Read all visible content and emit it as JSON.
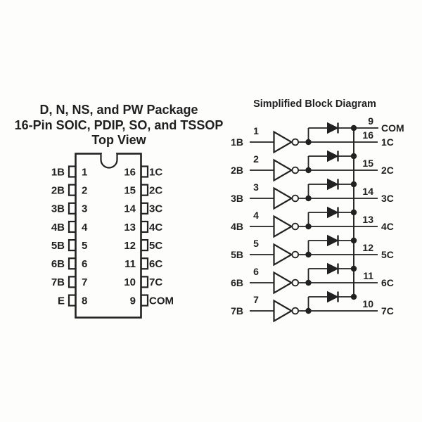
{
  "colors": {
    "background": "#fdfdfb",
    "ink": "#212121"
  },
  "package_diagram": {
    "title_lines": [
      "D, N, NS, and PW Package",
      "16-Pin SOIC, PDIP, SO, and TSSOP",
      "Top View"
    ],
    "left_pins": [
      {
        "label": "1B",
        "number": "1"
      },
      {
        "label": "2B",
        "number": "2"
      },
      {
        "label": "3B",
        "number": "3"
      },
      {
        "label": "4B",
        "number": "4"
      },
      {
        "label": "5B",
        "number": "5"
      },
      {
        "label": "6B",
        "number": "6"
      },
      {
        "label": "7B",
        "number": "7"
      },
      {
        "label": "E",
        "number": "8"
      }
    ],
    "right_pins": [
      {
        "label": "1C",
        "number": "16"
      },
      {
        "label": "2C",
        "number": "15"
      },
      {
        "label": "3C",
        "number": "14"
      },
      {
        "label": "4C",
        "number": "13"
      },
      {
        "label": "5C",
        "number": "12"
      },
      {
        "label": "6C",
        "number": "11"
      },
      {
        "label": "7C",
        "number": "10"
      },
      {
        "label": "COM",
        "number": "9"
      }
    ]
  },
  "block_diagram": {
    "title": "Simplified Block Diagram",
    "com": {
      "pin": "9",
      "label": "COM"
    },
    "channels": [
      {
        "input_pin": "1",
        "input_label": "1B",
        "output_pin": "16",
        "output_label": "1C"
      },
      {
        "input_pin": "2",
        "input_label": "2B",
        "output_pin": "15",
        "output_label": "2C"
      },
      {
        "input_pin": "3",
        "input_label": "3B",
        "output_pin": "14",
        "output_label": "3C"
      },
      {
        "input_pin": "4",
        "input_label": "4B",
        "output_pin": "13",
        "output_label": "4C"
      },
      {
        "input_pin": "5",
        "input_label": "5B",
        "output_pin": "12",
        "output_label": "5C"
      },
      {
        "input_pin": "6",
        "input_label": "6B",
        "output_pin": "11",
        "output_label": "6C"
      },
      {
        "input_pin": "7",
        "input_label": "7B",
        "output_pin": "10",
        "output_label": "7C"
      }
    ]
  }
}
